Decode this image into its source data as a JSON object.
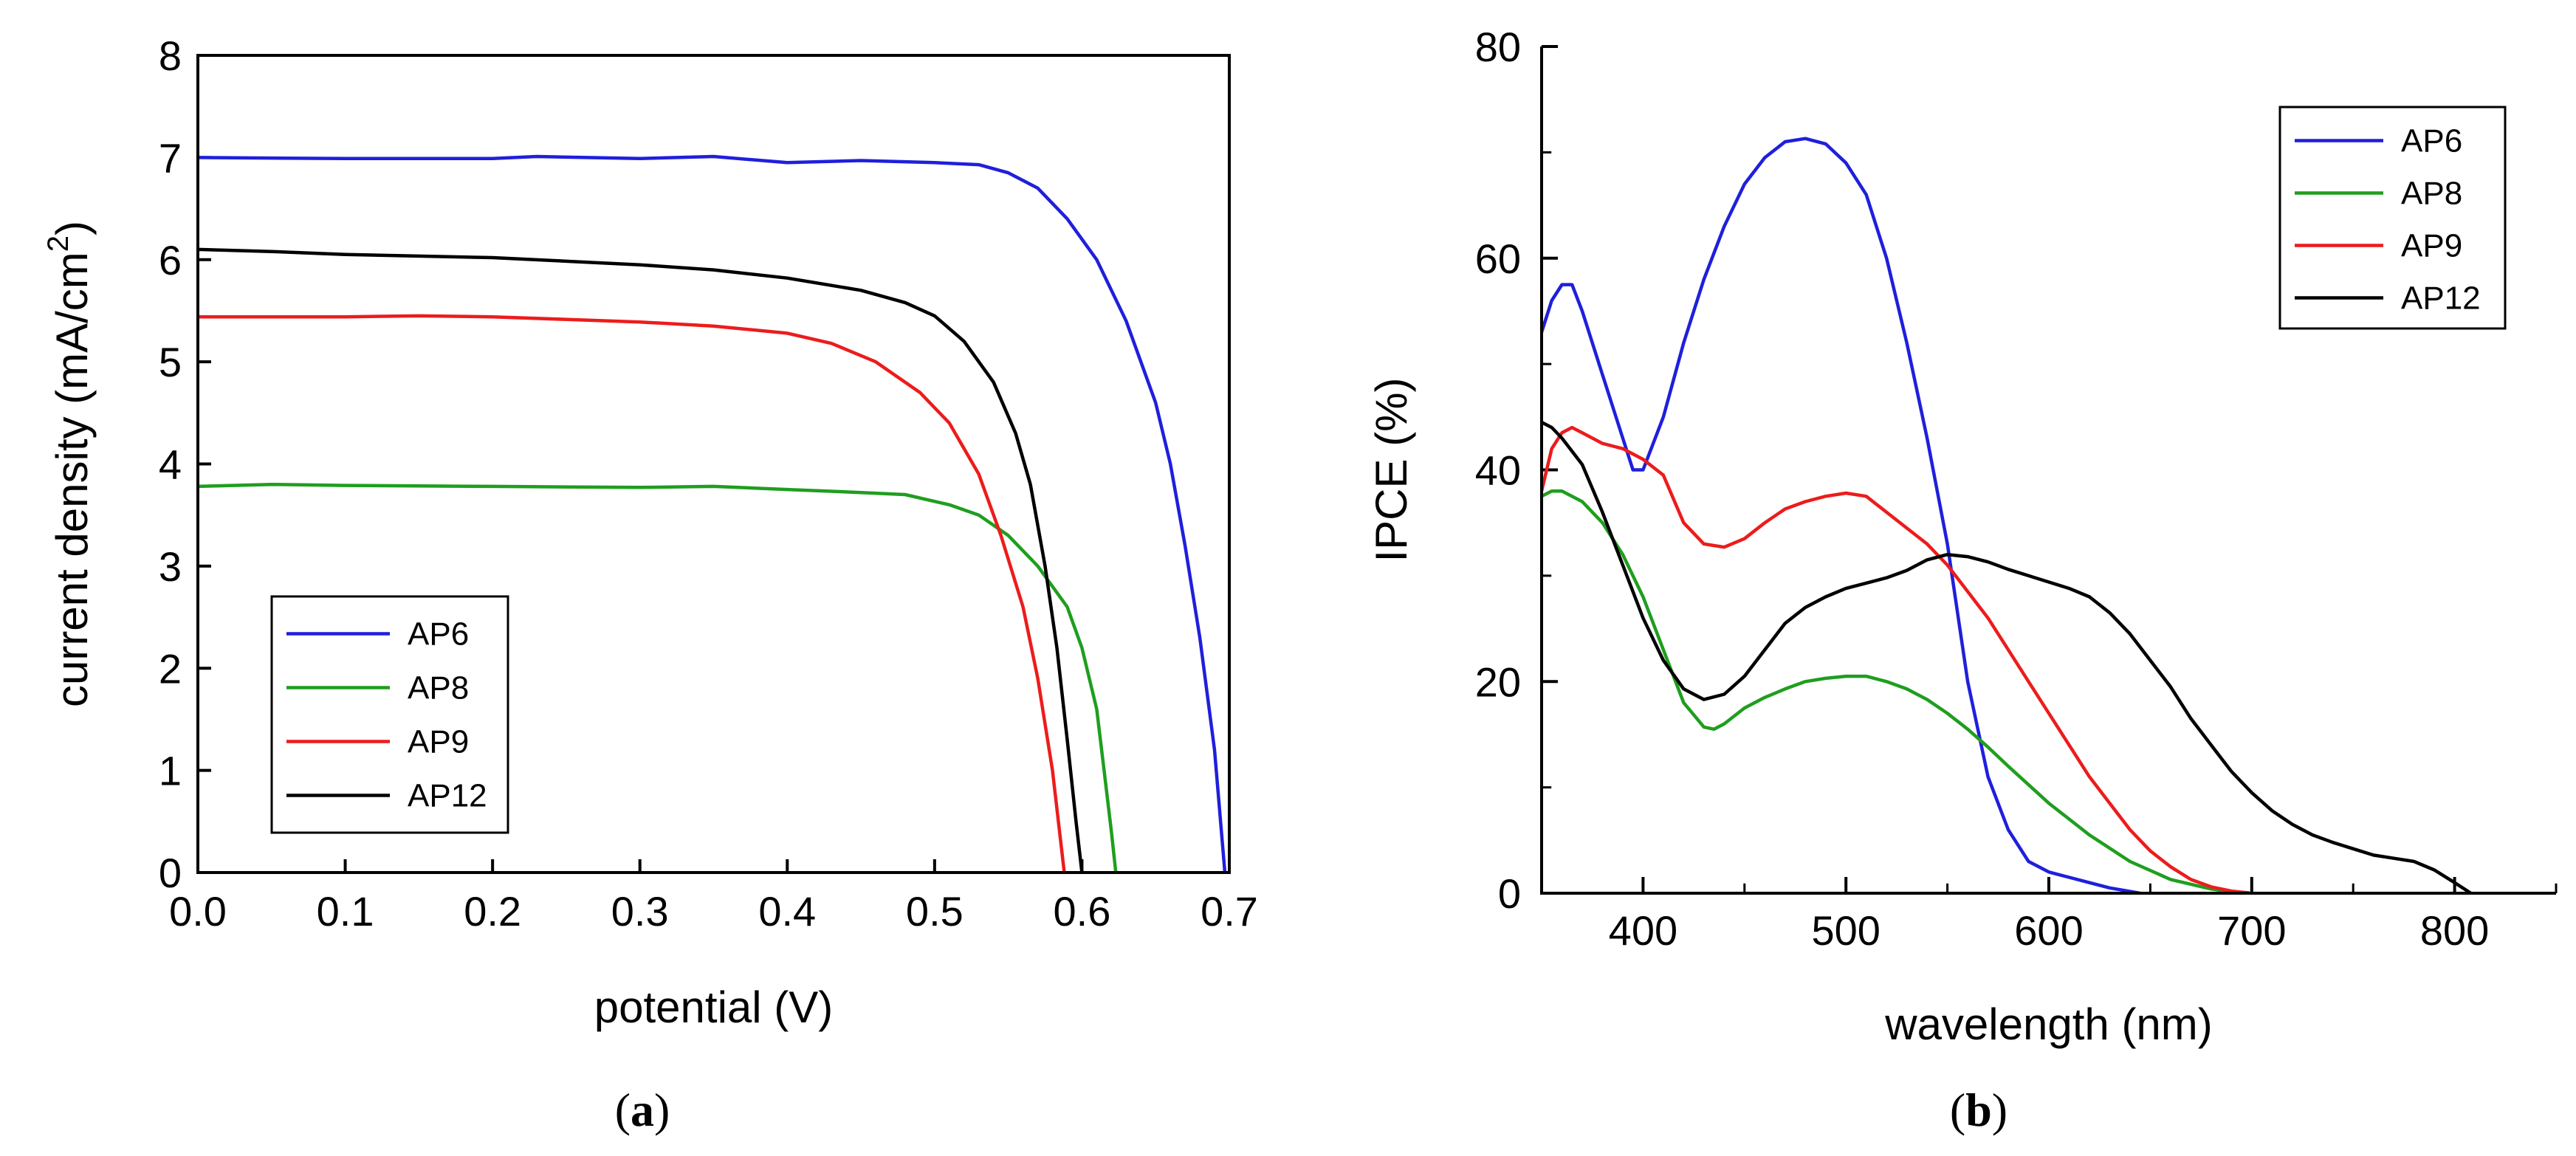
{
  "chart_data": [
    {
      "type": "line",
      "panel_label": "a",
      "title": "",
      "xlabel": "potential (V)",
      "ylabel": "current density (mA/cm",
      "ylabel_sup": "2",
      "ylabel_close": ")",
      "xlim": [
        0,
        0.7
      ],
      "ylim": [
        0,
        8
      ],
      "xticks": [
        0.0,
        0.1,
        0.2,
        0.3,
        0.4,
        0.5,
        0.6,
        0.7
      ],
      "xtick_labels": [
        "0.0",
        "0.1",
        "0.2",
        "0.3",
        "0.4",
        "0.5",
        "0.6",
        "0.7"
      ],
      "yticks": [
        0,
        1,
        2,
        3,
        4,
        5,
        6,
        7,
        8
      ],
      "ytick_labels": [
        "0",
        "1",
        "2",
        "3",
        "4",
        "5",
        "6",
        "7",
        "8"
      ],
      "legend_position": "bottom-left",
      "series": [
        {
          "name": "AP6",
          "color": "#1f1fdc",
          "points": [
            [
              0,
              7.0
            ],
            [
              0.1,
              6.99
            ],
            [
              0.2,
              6.99
            ],
            [
              0.23,
              7.01
            ],
            [
              0.3,
              6.99
            ],
            [
              0.35,
              7.01
            ],
            [
              0.4,
              6.95
            ],
            [
              0.45,
              6.97
            ],
            [
              0.5,
              6.95
            ],
            [
              0.53,
              6.93
            ],
            [
              0.55,
              6.85
            ],
            [
              0.57,
              6.7
            ],
            [
              0.59,
              6.4
            ],
            [
              0.61,
              6.0
            ],
            [
              0.63,
              5.4
            ],
            [
              0.65,
              4.6
            ],
            [
              0.66,
              4.0
            ],
            [
              0.67,
              3.2
            ],
            [
              0.68,
              2.3
            ],
            [
              0.69,
              1.2
            ],
            [
              0.697,
              0.0
            ]
          ]
        },
        {
          "name": "AP8",
          "color": "#1f9e1f",
          "points": [
            [
              0,
              3.78
            ],
            [
              0.05,
              3.8
            ],
            [
              0.1,
              3.79
            ],
            [
              0.2,
              3.78
            ],
            [
              0.3,
              3.77
            ],
            [
              0.35,
              3.78
            ],
            [
              0.4,
              3.75
            ],
            [
              0.45,
              3.72
            ],
            [
              0.48,
              3.7
            ],
            [
              0.51,
              3.6
            ],
            [
              0.53,
              3.5
            ],
            [
              0.55,
              3.3
            ],
            [
              0.57,
              3.0
            ],
            [
              0.59,
              2.6
            ],
            [
              0.6,
              2.2
            ],
            [
              0.61,
              1.6
            ],
            [
              0.615,
              1.0
            ],
            [
              0.62,
              0.4
            ],
            [
              0.623,
              0.0
            ]
          ]
        },
        {
          "name": "AP9",
          "color": "#ec1c1c",
          "points": [
            [
              0,
              5.44
            ],
            [
              0.1,
              5.44
            ],
            [
              0.15,
              5.45
            ],
            [
              0.2,
              5.44
            ],
            [
              0.3,
              5.39
            ],
            [
              0.35,
              5.35
            ],
            [
              0.4,
              5.28
            ],
            [
              0.43,
              5.18
            ],
            [
              0.46,
              5.0
            ],
            [
              0.49,
              4.7
            ],
            [
              0.51,
              4.4
            ],
            [
              0.53,
              3.9
            ],
            [
              0.545,
              3.3
            ],
            [
              0.56,
              2.6
            ],
            [
              0.57,
              1.9
            ],
            [
              0.58,
              1.0
            ],
            [
              0.588,
              0.0
            ]
          ]
        },
        {
          "name": "AP12",
          "color": "#000000",
          "points": [
            [
              0,
              6.1
            ],
            [
              0.05,
              6.08
            ],
            [
              0.1,
              6.05
            ],
            [
              0.2,
              6.02
            ],
            [
              0.3,
              5.95
            ],
            [
              0.35,
              5.9
            ],
            [
              0.4,
              5.82
            ],
            [
              0.45,
              5.7
            ],
            [
              0.48,
              5.58
            ],
            [
              0.5,
              5.45
            ],
            [
              0.52,
              5.2
            ],
            [
              0.54,
              4.8
            ],
            [
              0.555,
              4.3
            ],
            [
              0.565,
              3.8
            ],
            [
              0.575,
              3.0
            ],
            [
              0.583,
              2.2
            ],
            [
              0.59,
              1.3
            ],
            [
              0.596,
              0.5
            ],
            [
              0.6,
              0.0
            ]
          ]
        }
      ]
    },
    {
      "type": "line",
      "panel_label": "b",
      "title": "",
      "xlabel": "wavelength (nm)",
      "ylabel": "IPCE (%)",
      "xlim": [
        350,
        850
      ],
      "ylim": [
        0,
        80
      ],
      "xticks": [
        400,
        500,
        600,
        700,
        800
      ],
      "xtick_labels": [
        "400",
        "500",
        "600",
        "700",
        "800"
      ],
      "yticks": [
        0,
        20,
        40,
        60,
        80
      ],
      "ytick_labels": [
        "0",
        "20",
        "40",
        "60",
        "80"
      ],
      "legend_position": "top-right",
      "series": [
        {
          "name": "AP6",
          "color": "#1f1fdc",
          "points": [
            [
              350,
              53
            ],
            [
              355,
              56
            ],
            [
              360,
              57.5
            ],
            [
              365,
              57.5
            ],
            [
              370,
              55
            ],
            [
              380,
              49
            ],
            [
              390,
              43
            ],
            [
              395,
              40
            ],
            [
              400,
              40
            ],
            [
              410,
              45
            ],
            [
              420,
              52
            ],
            [
              430,
              58
            ],
            [
              440,
              63
            ],
            [
              450,
              67
            ],
            [
              460,
              69.5
            ],
            [
              470,
              71
            ],
            [
              480,
              71.3
            ],
            [
              490,
              70.8
            ],
            [
              500,
              69
            ],
            [
              510,
              66
            ],
            [
              520,
              60
            ],
            [
              530,
              52
            ],
            [
              540,
              43
            ],
            [
              550,
              33
            ],
            [
              560,
              20
            ],
            [
              570,
              11
            ],
            [
              580,
              6
            ],
            [
              590,
              3
            ],
            [
              600,
              2
            ],
            [
              610,
              1.5
            ],
            [
              620,
              1
            ],
            [
              630,
              0.5
            ],
            [
              645,
              0
            ]
          ]
        },
        {
          "name": "AP8",
          "color": "#1f9e1f",
          "points": [
            [
              350,
              37.5
            ],
            [
              355,
              38
            ],
            [
              360,
              38
            ],
            [
              370,
              37
            ],
            [
              380,
              35
            ],
            [
              390,
              32
            ],
            [
              400,
              28
            ],
            [
              410,
              23
            ],
            [
              420,
              18
            ],
            [
              430,
              15.7
            ],
            [
              435,
              15.5
            ],
            [
              440,
              16
            ],
            [
              450,
              17.5
            ],
            [
              460,
              18.5
            ],
            [
              470,
              19.3
            ],
            [
              480,
              20
            ],
            [
              490,
              20.3
            ],
            [
              500,
              20.5
            ],
            [
              510,
              20.5
            ],
            [
              520,
              20
            ],
            [
              530,
              19.3
            ],
            [
              540,
              18.3
            ],
            [
              550,
              17
            ],
            [
              560,
              15.5
            ],
            [
              570,
              13.8
            ],
            [
              580,
              12
            ],
            [
              600,
              8.5
            ],
            [
              620,
              5.5
            ],
            [
              640,
              3
            ],
            [
              660,
              1.3
            ],
            [
              680,
              0.4
            ],
            [
              695,
              0
            ]
          ]
        },
        {
          "name": "AP9",
          "color": "#ec1c1c",
          "points": [
            [
              350,
              38
            ],
            [
              355,
              42
            ],
            [
              360,
              43.5
            ],
            [
              365,
              44
            ],
            [
              370,
              43.5
            ],
            [
              380,
              42.5
            ],
            [
              390,
              42
            ],
            [
              400,
              41
            ],
            [
              410,
              39.5
            ],
            [
              420,
              35
            ],
            [
              430,
              33
            ],
            [
              440,
              32.7
            ],
            [
              450,
              33.5
            ],
            [
              460,
              35
            ],
            [
              470,
              36.3
            ],
            [
              480,
              37
            ],
            [
              490,
              37.5
            ],
            [
              500,
              37.8
            ],
            [
              510,
              37.5
            ],
            [
              520,
              36
            ],
            [
              530,
              34.5
            ],
            [
              540,
              33
            ],
            [
              550,
              31
            ],
            [
              560,
              28.5
            ],
            [
              570,
              26
            ],
            [
              580,
              23
            ],
            [
              590,
              20
            ],
            [
              600,
              17
            ],
            [
              610,
              14
            ],
            [
              620,
              11
            ],
            [
              630,
              8.5
            ],
            [
              640,
              6
            ],
            [
              650,
              4
            ],
            [
              660,
              2.5
            ],
            [
              670,
              1.3
            ],
            [
              680,
              0.6
            ],
            [
              690,
              0.2
            ],
            [
              700,
              0
            ]
          ]
        },
        {
          "name": "AP12",
          "color": "#000000",
          "points": [
            [
              350,
              44.5
            ],
            [
              355,
              44
            ],
            [
              360,
              43
            ],
            [
              370,
              40.5
            ],
            [
              380,
              36
            ],
            [
              390,
              31
            ],
            [
              400,
              26
            ],
            [
              410,
              22
            ],
            [
              420,
              19.3
            ],
            [
              430,
              18.3
            ],
            [
              440,
              18.8
            ],
            [
              450,
              20.5
            ],
            [
              460,
              23
            ],
            [
              470,
              25.5
            ],
            [
              480,
              27
            ],
            [
              490,
              28
            ],
            [
              500,
              28.8
            ],
            [
              510,
              29.3
            ],
            [
              520,
              29.8
            ],
            [
              530,
              30.5
            ],
            [
              540,
              31.5
            ],
            [
              550,
              32
            ],
            [
              560,
              31.8
            ],
            [
              570,
              31.3
            ],
            [
              580,
              30.6
            ],
            [
              590,
              30
            ],
            [
              600,
              29.4
            ],
            [
              610,
              28.8
            ],
            [
              620,
              28
            ],
            [
              630,
              26.5
            ],
            [
              640,
              24.5
            ],
            [
              650,
              22
            ],
            [
              660,
              19.5
            ],
            [
              670,
              16.5
            ],
            [
              680,
              14
            ],
            [
              690,
              11.5
            ],
            [
              700,
              9.5
            ],
            [
              710,
              7.8
            ],
            [
              720,
              6.5
            ],
            [
              730,
              5.5
            ],
            [
              740,
              4.8
            ],
            [
              750,
              4.2
            ],
            [
              760,
              3.6
            ],
            [
              770,
              3.3
            ],
            [
              780,
              3.0
            ],
            [
              790,
              2.2
            ],
            [
              800,
              1
            ],
            [
              808,
              0
            ]
          ]
        }
      ]
    }
  ]
}
